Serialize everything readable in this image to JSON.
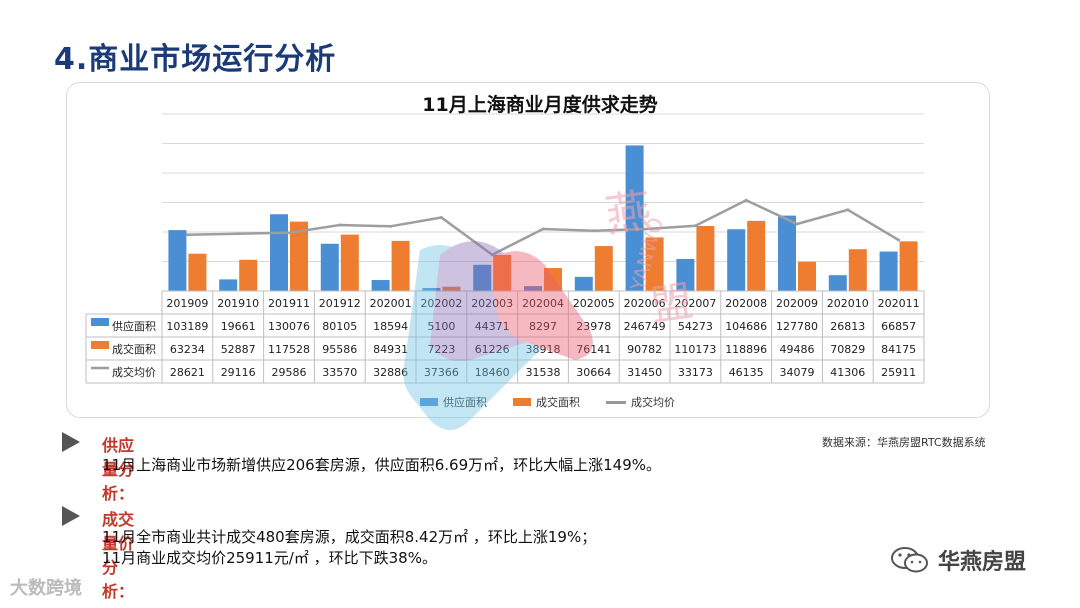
{
  "page": {
    "title": "4.商业市场运行分析"
  },
  "chart_data": {
    "type": "bar",
    "title": "11月上海商业月度供求走势",
    "categories": [
      "201909",
      "201910",
      "201911",
      "201912",
      "202001",
      "202002",
      "202003",
      "202004",
      "202005",
      "202006",
      "202007",
      "202008",
      "202009",
      "202010",
      "202011"
    ],
    "ylim": [
      0,
      300000
    ],
    "y2lim": [
      0,
      90000
    ],
    "series": [
      {
        "name": "供应面积",
        "kind": "bar",
        "axis": "left",
        "color": "#4a8fd4",
        "values": [
          103189,
          19661,
          130076,
          80105,
          18594,
          5100,
          44371,
          8297,
          23978,
          246749,
          54273,
          104686,
          127780,
          26813,
          66857
        ],
        "labels": [
          "103189",
          "19661",
          "130076",
          "80105",
          "18594",
          "5100",
          "44371",
          "8297",
          "23978",
          "246749",
          "54273",
          "104686",
          "127780",
          "26813",
          "66857"
        ]
      },
      {
        "name": "成交面积",
        "kind": "bar",
        "axis": "left",
        "color": "#ee7d31",
        "values": [
          63234,
          52887,
          117528,
          95586,
          84931,
          7223,
          61226,
          38918,
          76141,
          90782,
          110173,
          118896,
          49486,
          70829,
          84175
        ],
        "labels": [
          "63234",
          "52887",
          "117528",
          "95586",
          "84931",
          "7223",
          "61226",
          "38918",
          "76141",
          "90782",
          "110173",
          "118896",
          "49486",
          "70829",
          "84175"
        ]
      },
      {
        "name": "成交均价",
        "kind": "line",
        "axis": "right",
        "color": "#9e9e9e",
        "values": [
          28621,
          29116,
          29586,
          33570,
          32886,
          37366,
          18460,
          31538,
          30664,
          31450,
          33173,
          46135,
          34079,
          41306,
          25911
        ],
        "labels": [
          "28621",
          "29116",
          "29586",
          "33570",
          "32886",
          "37366",
          "18460",
          "31538",
          "30664",
          "31450",
          "33173",
          "46135",
          "34079",
          "41306",
          "25911"
        ]
      }
    ]
  },
  "legend": {
    "supply": "供应面积",
    "deal": "成交面积",
    "price": "成交均价"
  },
  "source": "数据来源：华燕房盟RTC数据系统",
  "supply_analysis": {
    "heading": "供应量分析：",
    "text": "11月上海商业市场新增供应206套房源，供应面积6.69万㎡，环比大幅上涨149%。"
  },
  "deal_analysis": {
    "heading": "成交量价分析：",
    "line1": "11月全市商业共计成交480套房源，成交面积8.42万㎡ ，环比上涨19%；",
    "line2": "11月商业成交均价25911元/㎡ ，环比下跌38%。"
  },
  "brand": {
    "wechat": "华燕房盟",
    "left": "大数跨境"
  },
  "watermark": {
    "chars": [
      "燕",
      "YANWO",
      "盟"
    ]
  },
  "colors": {
    "title": "#1a3a7a",
    "accent_red": "#c0392b",
    "supply": "#4a8fd4",
    "deal": "#ee7d31",
    "price": "#9e9e9e"
  }
}
